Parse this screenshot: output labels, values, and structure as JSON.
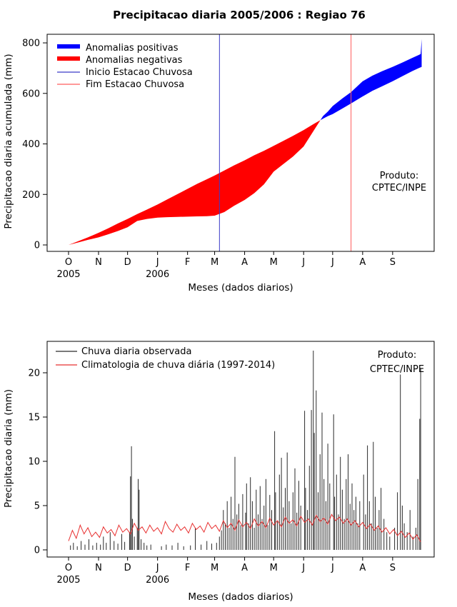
{
  "page": {
    "title": "Precipitacao diaria 2005/2006 : Regiao 76"
  },
  "chart_data": [
    {
      "type": "area",
      "title": "Precipitacao diaria 2005/2006 : Regiao 76",
      "xlabel": "Meses (dados diarios)",
      "ylabel": "Precipitacao diaria acumulada (mm)",
      "ylim": [
        0,
        830
      ],
      "yticks": [
        0,
        200,
        400,
        600,
        800
      ],
      "x_unit": "day of season (0 = 1 Oct 2005)",
      "month_tick_days": [
        0,
        31,
        61,
        92,
        123,
        151,
        182,
        212,
        243,
        273,
        304,
        335
      ],
      "month_tick_labels": [
        "O",
        "N",
        "D",
        "J",
        "F",
        "M",
        "A",
        "M",
        "J",
        "J",
        "A",
        "S"
      ],
      "year_labels": [
        {
          "day": 0,
          "label": "2005"
        },
        {
          "day": 92,
          "label": "2006"
        }
      ],
      "legend": [
        {
          "label": "Anomalias positivas",
          "color": "#0000ff",
          "type": "fill"
        },
        {
          "label": "Anomalias negativas",
          "color": "#ff0000",
          "type": "fill"
        },
        {
          "label": "Inicio Estacao Chuvosa",
          "color": "#3b3bc8",
          "type": "line"
        },
        {
          "label": "Fim Estacao Chuvosa",
          "color": "#ff5c5c",
          "type": "line"
        }
      ],
      "annotation": {
        "line1": "Produto:",
        "line2": "CPTEC/INPE"
      },
      "vlines": [
        {
          "name": "inicio-estacao-chuvosa",
          "day": 156,
          "color": "#3b3bc8"
        },
        {
          "name": "fim-estacao-chuvosa",
          "day": 292,
          "color": "#ff5c5c"
        }
      ],
      "colors": {
        "positive_fill": "#0000ff",
        "negative_fill": "#ff0000"
      },
      "x_days": [
        0,
        10,
        20,
        31,
        41,
        51,
        61,
        71,
        81,
        92,
        102,
        112,
        123,
        133,
        143,
        151,
        161,
        171,
        182,
        192,
        202,
        212,
        222,
        232,
        243,
        253,
        263,
        268,
        273,
        283,
        292,
        304,
        314,
        324,
        335,
        345,
        355,
        362,
        364,
        365
      ],
      "series": [
        {
          "name": "Precipitacao acumulada observada",
          "values": [
            0,
            10,
            20,
            30,
            42,
            55,
            70,
            95,
            103,
            108,
            110,
            111,
            112,
            113,
            114,
            116,
            130,
            155,
            178,
            205,
            240,
            290,
            320,
            350,
            390,
            450,
            510,
            528,
            550,
            580,
            605,
            648,
            670,
            688,
            705,
            722,
            740,
            752,
            756,
            815
          ]
        },
        {
          "name": "Precipitacao acumulada climatologica",
          "values": [
            0,
            15,
            30,
            48,
            66,
            85,
            103,
            122,
            140,
            160,
            180,
            200,
            222,
            242,
            260,
            275,
            295,
            315,
            335,
            355,
            373,
            392,
            412,
            432,
            455,
            478,
            500,
            510,
            518,
            540,
            560,
            588,
            610,
            628,
            648,
            668,
            688,
            700,
            703,
            705
          ]
        }
      ]
    },
    {
      "type": "bar",
      "title": "",
      "xlabel": "Meses (dados diarios)",
      "ylabel": "Precipitacao diaria (mm)",
      "ylim": [
        0,
        23
      ],
      "yticks": [
        0,
        5,
        10,
        15,
        20
      ],
      "month_tick_days": [
        0,
        31,
        61,
        92,
        123,
        151,
        182,
        212,
        243,
        273,
        304,
        335
      ],
      "month_tick_labels": [
        "O",
        "N",
        "D",
        "J",
        "F",
        "M",
        "A",
        "M",
        "J",
        "J",
        "A",
        "S"
      ],
      "year_labels": [
        {
          "day": 0,
          "label": "2005"
        },
        {
          "day": 92,
          "label": "2006"
        }
      ],
      "legend": [
        {
          "label": "Chuva diaria observada",
          "color": "#2b2b2b",
          "type": "line"
        },
        {
          "label": "Climatologia de chuva diária (1997-2014)",
          "color": "#e83030",
          "type": "line"
        }
      ],
      "annotation": {
        "line1": "Produto:",
        "line2": "CPTEC/INPE"
      },
      "colors": {
        "bars": "#2b2b2b",
        "climatology_line": "#e83030"
      },
      "observed_events": [
        [
          2,
          0.5
        ],
        [
          5,
          0.8
        ],
        [
          9,
          0.4
        ],
        [
          13,
          1.0
        ],
        [
          17,
          0.6
        ],
        [
          21,
          1.2
        ],
        [
          25,
          0.5
        ],
        [
          29,
          0.8
        ],
        [
          33,
          0.6
        ],
        [
          36,
          1.5
        ],
        [
          39,
          0.8
        ],
        [
          43,
          2.0
        ],
        [
          47,
          1.0
        ],
        [
          51,
          0.7
        ],
        [
          55,
          1.8
        ],
        [
          58,
          0.9
        ],
        [
          63,
          2.0
        ],
        [
          64,
          8.3
        ],
        [
          65,
          11.7
        ],
        [
          66,
          3.5
        ],
        [
          68,
          1.5
        ],
        [
          71,
          2.5
        ],
        [
          72,
          8.0
        ],
        [
          73,
          6.8
        ],
        [
          75,
          1.2
        ],
        [
          78,
          0.8
        ],
        [
          81,
          0.5
        ],
        [
          85,
          0.6
        ],
        [
          96,
          0.4
        ],
        [
          101,
          0.6
        ],
        [
          107,
          0.5
        ],
        [
          113,
          0.8
        ],
        [
          119,
          0.4
        ],
        [
          126,
          0.5
        ],
        [
          131,
          2.5
        ],
        [
          137,
          0.6
        ],
        [
          143,
          1.0
        ],
        [
          148,
          0.7
        ],
        [
          153,
          0.8
        ],
        [
          156,
          1.5
        ],
        [
          158,
          2.2
        ],
        [
          160,
          4.5
        ],
        [
          162,
          3.0
        ],
        [
          164,
          5.5
        ],
        [
          166,
          2.5
        ],
        [
          168,
          6.0
        ],
        [
          170,
          3.5
        ],
        [
          172,
          10.5
        ],
        [
          174,
          4.0
        ],
        [
          176,
          5.2
        ],
        [
          178,
          2.8
        ],
        [
          180,
          6.3
        ],
        [
          183,
          4.2
        ],
        [
          184,
          7.5
        ],
        [
          186,
          3.0
        ],
        [
          188,
          8.2
        ],
        [
          190,
          5.5
        ],
        [
          192,
          2.5
        ],
        [
          194,
          6.8
        ],
        [
          196,
          4.0
        ],
        [
          198,
          7.2
        ],
        [
          200,
          3.5
        ],
        [
          202,
          5.0
        ],
        [
          204,
          8.0
        ],
        [
          206,
          2.8
        ],
        [
          208,
          6.2
        ],
        [
          210,
          4.5
        ],
        [
          213,
          13.4
        ],
        [
          214,
          6.5
        ],
        [
          216,
          3.2
        ],
        [
          218,
          8.5
        ],
        [
          220,
          10.4
        ],
        [
          222,
          4.8
        ],
        [
          224,
          7.0
        ],
        [
          226,
          11.0
        ],
        [
          228,
          5.5
        ],
        [
          230,
          3.0
        ],
        [
          232,
          6.5
        ],
        [
          234,
          9.2
        ],
        [
          236,
          4.2
        ],
        [
          238,
          7.8
        ],
        [
          240,
          5.0
        ],
        [
          244,
          15.7
        ],
        [
          245,
          7.0
        ],
        [
          247,
          4.5
        ],
        [
          249,
          9.5
        ],
        [
          251,
          15.8
        ],
        [
          253,
          22.5
        ],
        [
          254,
          13.2
        ],
        [
          256,
          18.0
        ],
        [
          258,
          6.5
        ],
        [
          260,
          10.8
        ],
        [
          262,
          15.5
        ],
        [
          264,
          8.0
        ],
        [
          266,
          5.5
        ],
        [
          268,
          12.0
        ],
        [
          270,
          7.5
        ],
        [
          274,
          15.3
        ],
        [
          275,
          6.0
        ],
        [
          277,
          8.5
        ],
        [
          279,
          4.0
        ],
        [
          281,
          10.5
        ],
        [
          283,
          6.8
        ],
        [
          285,
          3.5
        ],
        [
          287,
          8.0
        ],
        [
          289,
          10.8
        ],
        [
          291,
          5.2
        ],
        [
          293,
          7.5
        ],
        [
          295,
          4.5
        ],
        [
          297,
          6.0
        ],
        [
          299,
          3.0
        ],
        [
          301,
          5.5
        ],
        [
          305,
          8.5
        ],
        [
          307,
          4.0
        ],
        [
          309,
          11.8
        ],
        [
          311,
          5.5
        ],
        [
          313,
          3.0
        ],
        [
          315,
          12.2
        ],
        [
          317,
          6.0
        ],
        [
          319,
          2.5
        ],
        [
          321,
          4.5
        ],
        [
          323,
          7.0
        ],
        [
          326,
          3.5
        ],
        [
          329,
          2.0
        ],
        [
          332,
          1.5
        ],
        [
          337,
          2.5
        ],
        [
          340,
          6.5
        ],
        [
          343,
          19.8
        ],
        [
          345,
          5.0
        ],
        [
          347,
          3.0
        ],
        [
          350,
          2.0
        ],
        [
          353,
          4.5
        ],
        [
          356,
          1.5
        ],
        [
          359,
          2.5
        ],
        [
          361,
          8.0
        ],
        [
          363,
          14.8
        ],
        [
          364,
          20.5
        ]
      ],
      "climatology_points": [
        [
          0,
          1.0
        ],
        [
          4,
          2.2
        ],
        [
          8,
          1.3
        ],
        [
          12,
          2.8
        ],
        [
          16,
          1.8
        ],
        [
          20,
          2.5
        ],
        [
          24,
          1.5
        ],
        [
          28,
          2.0
        ],
        [
          32,
          1.4
        ],
        [
          36,
          2.6
        ],
        [
          40,
          1.9
        ],
        [
          44,
          2.3
        ],
        [
          48,
          1.6
        ],
        [
          52,
          2.8
        ],
        [
          56,
          2.0
        ],
        [
          60,
          2.4
        ],
        [
          64,
          1.8
        ],
        [
          68,
          3.0
        ],
        [
          72,
          2.2
        ],
        [
          76,
          2.6
        ],
        [
          80,
          1.9
        ],
        [
          84,
          2.8
        ],
        [
          88,
          2.1
        ],
        [
          92,
          2.5
        ],
        [
          96,
          1.8
        ],
        [
          100,
          3.2
        ],
        [
          104,
          2.4
        ],
        [
          108,
          2.0
        ],
        [
          112,
          2.9
        ],
        [
          116,
          2.2
        ],
        [
          120,
          2.6
        ],
        [
          124,
          1.9
        ],
        [
          128,
          3.0
        ],
        [
          132,
          2.3
        ],
        [
          136,
          2.7
        ],
        [
          140,
          2.0
        ],
        [
          144,
          3.1
        ],
        [
          148,
          2.4
        ],
        [
          152,
          2.8
        ],
        [
          156,
          2.1
        ],
        [
          160,
          3.3
        ],
        [
          164,
          2.5
        ],
        [
          168,
          3.0
        ],
        [
          172,
          2.2
        ],
        [
          176,
          3.4
        ],
        [
          180,
          2.6
        ],
        [
          184,
          3.1
        ],
        [
          188,
          2.4
        ],
        [
          192,
          3.5
        ],
        [
          196,
          2.7
        ],
        [
          200,
          3.2
        ],
        [
          204,
          2.5
        ],
        [
          208,
          3.6
        ],
        [
          212,
          2.8
        ],
        [
          216,
          3.3
        ],
        [
          220,
          2.6
        ],
        [
          224,
          3.7
        ],
        [
          228,
          3.0
        ],
        [
          232,
          3.4
        ],
        [
          236,
          2.7
        ],
        [
          240,
          3.8
        ],
        [
          244,
          3.1
        ],
        [
          248,
          3.5
        ],
        [
          252,
          2.8
        ],
        [
          256,
          3.9
        ],
        [
          260,
          3.2
        ],
        [
          264,
          3.6
        ],
        [
          268,
          2.9
        ],
        [
          272,
          4.0
        ],
        [
          276,
          3.3
        ],
        [
          280,
          3.7
        ],
        [
          284,
          3.0
        ],
        [
          288,
          3.5
        ],
        [
          292,
          2.8
        ],
        [
          296,
          3.3
        ],
        [
          300,
          2.6
        ],
        [
          304,
          3.1
        ],
        [
          308,
          2.4
        ],
        [
          312,
          2.9
        ],
        [
          316,
          2.2
        ],
        [
          320,
          2.7
        ],
        [
          324,
          2.0
        ],
        [
          328,
          2.5
        ],
        [
          332,
          1.8
        ],
        [
          336,
          2.3
        ],
        [
          340,
          1.6
        ],
        [
          344,
          2.1
        ],
        [
          348,
          1.4
        ],
        [
          352,
          1.9
        ],
        [
          356,
          1.2
        ],
        [
          360,
          1.7
        ],
        [
          364,
          0.9
        ]
      ]
    }
  ]
}
